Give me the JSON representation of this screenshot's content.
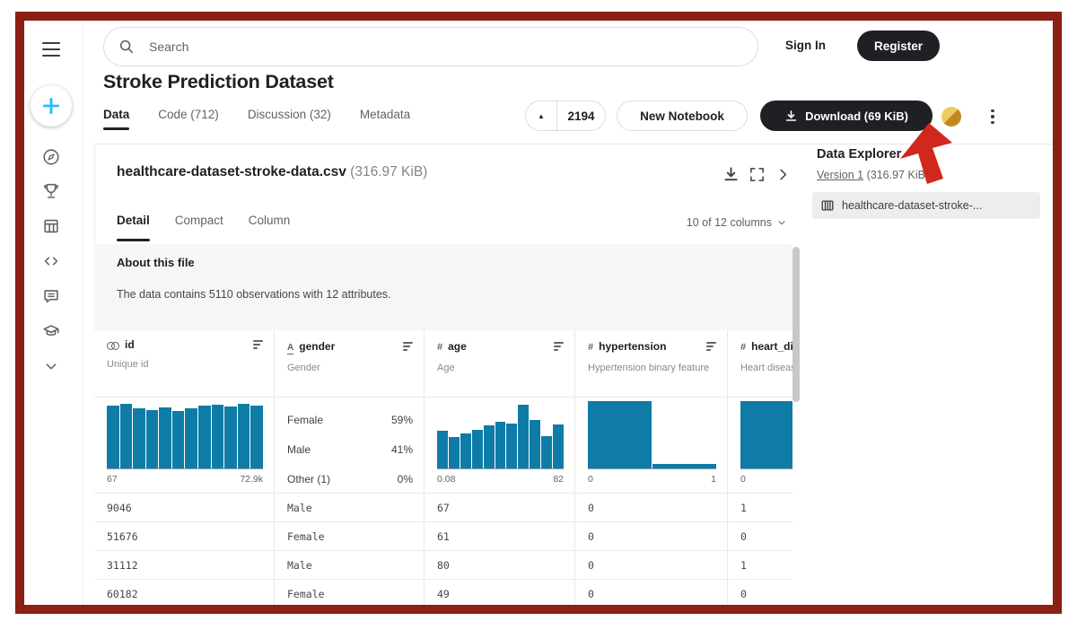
{
  "colors": {
    "accent_blue": "#20BEFF",
    "histogram": "#0E7CA6",
    "dark_button": "#1F2023",
    "frame_border": "#8B2015",
    "annotation_arrow": "#D0281C",
    "medal_gold": "#C08A1E"
  },
  "icons": {
    "upvote_caret": "▲",
    "sidebar_items": [
      "hamburger-menu",
      "create-plus",
      "home-compass",
      "competitions-trophy",
      "datasets-grid",
      "code-brackets",
      "discussions-comment",
      "learn-graduation-cap",
      "more-chevron-down"
    ]
  },
  "topbar": {
    "search_placeholder": "Search",
    "sign_in": "Sign In",
    "register": "Register"
  },
  "dataset_header": {
    "title": "Stroke Prediction Dataset",
    "tabs": [
      {
        "label": "Data",
        "active": true
      },
      {
        "label": "Code (712)",
        "active": false
      },
      {
        "label": "Discussion (32)",
        "active": false
      },
      {
        "label": "Metadata",
        "active": false
      }
    ],
    "upvote_caret": "▲",
    "upvote_count": "2194",
    "new_notebook": "New Notebook",
    "download_label": "Download (69 KiB)"
  },
  "data_explorer": {
    "title": "Data Explorer",
    "version_link": "Version 1",
    "version_size": "(316.97 KiB)",
    "file_name": "healthcare-dataset-stroke-..."
  },
  "file_card": {
    "filename": "healthcare-dataset-stroke-data.csv",
    "filesize": "(316.97 KiB)",
    "view_tabs": [
      {
        "label": "Detail",
        "active": true
      },
      {
        "label": "Compact",
        "active": false
      },
      {
        "label": "Column",
        "active": false
      }
    ],
    "columns_info": "10 of 12 columns",
    "about_title": "About this file",
    "about_text": "The data contains 5110 observations with 12 attributes."
  },
  "table": {
    "columns": [
      {
        "icon": "id",
        "name": "id",
        "desc": "Unique id",
        "chart": {
          "type": "histogram",
          "bars": [
            93,
            96,
            90,
            87,
            91,
            86,
            89,
            93,
            95,
            92,
            96,
            93
          ],
          "min_label": "67",
          "max_label": "72.9k"
        },
        "cells": [
          "9046",
          "51676",
          "31112",
          "60182"
        ]
      },
      {
        "icon": "string",
        "name": "gender",
        "desc": "Gender",
        "chart": {
          "type": "categories",
          "items": [
            {
              "label": "Female",
              "pct": "59%"
            },
            {
              "label": "Male",
              "pct": "41%"
            },
            {
              "label": "Other (1)",
              "pct": "0%"
            }
          ]
        },
        "cells": [
          "Male",
          "Female",
          "Male",
          "Female"
        ]
      },
      {
        "icon": "number",
        "name": "age",
        "desc": "Age",
        "chart": {
          "type": "histogram",
          "bars": [
            56,
            47,
            52,
            58,
            64,
            70,
            67,
            95,
            72,
            48,
            66
          ],
          "min_label": "0.08",
          "max_label": "82"
        },
        "cells": [
          "67",
          "61",
          "80",
          "49"
        ]
      },
      {
        "icon": "number",
        "name": "hypertension",
        "desc": "Hypertension binary feature",
        "chart": {
          "type": "histogram",
          "bars": [
            100,
            7
          ],
          "min_label": "0",
          "max_label": "1"
        },
        "cells": [
          "0",
          "0",
          "0",
          "0"
        ]
      },
      {
        "icon": "number",
        "name": "heart_disease",
        "desc": "Heart disease binary feature",
        "chart": {
          "type": "histogram",
          "bars": [
            100
          ],
          "min_label": "0",
          "max_label": ""
        },
        "cells": [
          "1",
          "0",
          "1",
          "0"
        ]
      }
    ]
  }
}
